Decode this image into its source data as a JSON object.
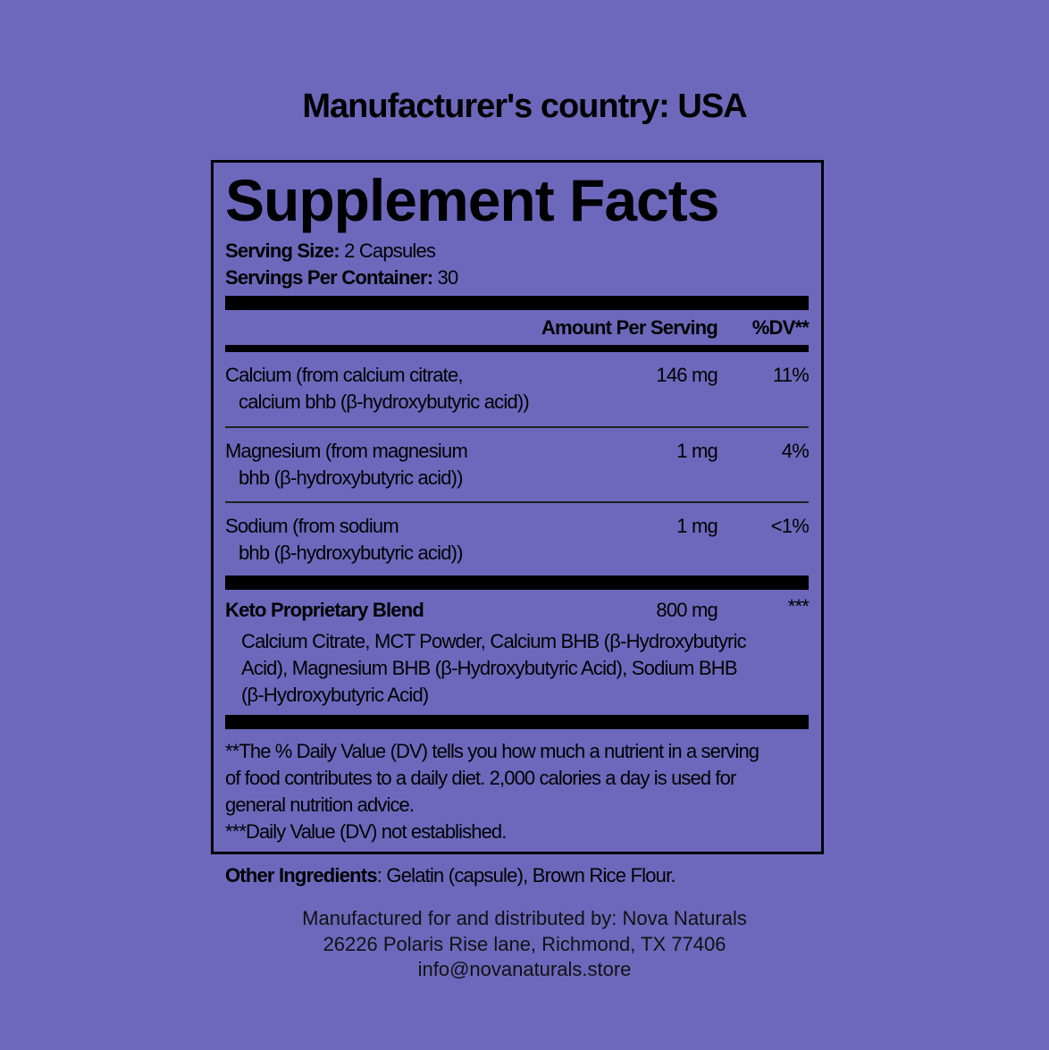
{
  "header": {
    "country": "Manufacturer's country: USA"
  },
  "facts": {
    "title": "Supplement Facts",
    "serving_size_label": "Serving Size:",
    "serving_size_value": " 2 Capsules",
    "servings_label": "Servings Per Container:",
    "servings_value": " 30",
    "col_amount": "Amount Per Serving",
    "col_dv": "%DV**",
    "rows": [
      {
        "line1": "Calcium (from calcium citrate,",
        "line2": "calcium bhb (β-hydroxybutyric acid))",
        "amount": "146 mg",
        "dv": "11%"
      },
      {
        "line1": "Magnesium (from magnesium",
        "line2": "bhb (β-hydroxybutyric acid))",
        "amount": "1 mg",
        "dv": "4%"
      },
      {
        "line1": "Sodium (from sodium",
        "line2": "bhb (β-hydroxybutyric acid))",
        "amount": "1 mg",
        "dv": "<1%"
      }
    ],
    "blend": {
      "name": "Keto Proprietary Blend",
      "amount": "800 mg",
      "dv": "***",
      "lines": [
        "Calcium Citrate, MCT Powder, Calcium BHB (β-Hydroxybutyric",
        "Acid), Magnesium BHB (β-Hydroxybutyric Acid), Sodium BHB",
        "(β-Hydroxybutyric Acid)"
      ]
    },
    "footnotes": [
      "**The % Daily Value (DV) tells you how much a nutrient in a serving",
      "of food contributes to a daily diet. 2,000 calories a day is used for",
      "general nutrition advice.",
      "***Daily Value (DV) not established."
    ]
  },
  "other": {
    "label": "Other Ingredients",
    "value": ": Gelatin (capsule), Brown Rice Flour."
  },
  "manufacturer": {
    "line1": "Manufactured for and distributed by: Nova Naturals",
    "line2": "26226 Polaris Rise lane, Richmond, TX 77406",
    "email": "info@novanaturals.store"
  }
}
